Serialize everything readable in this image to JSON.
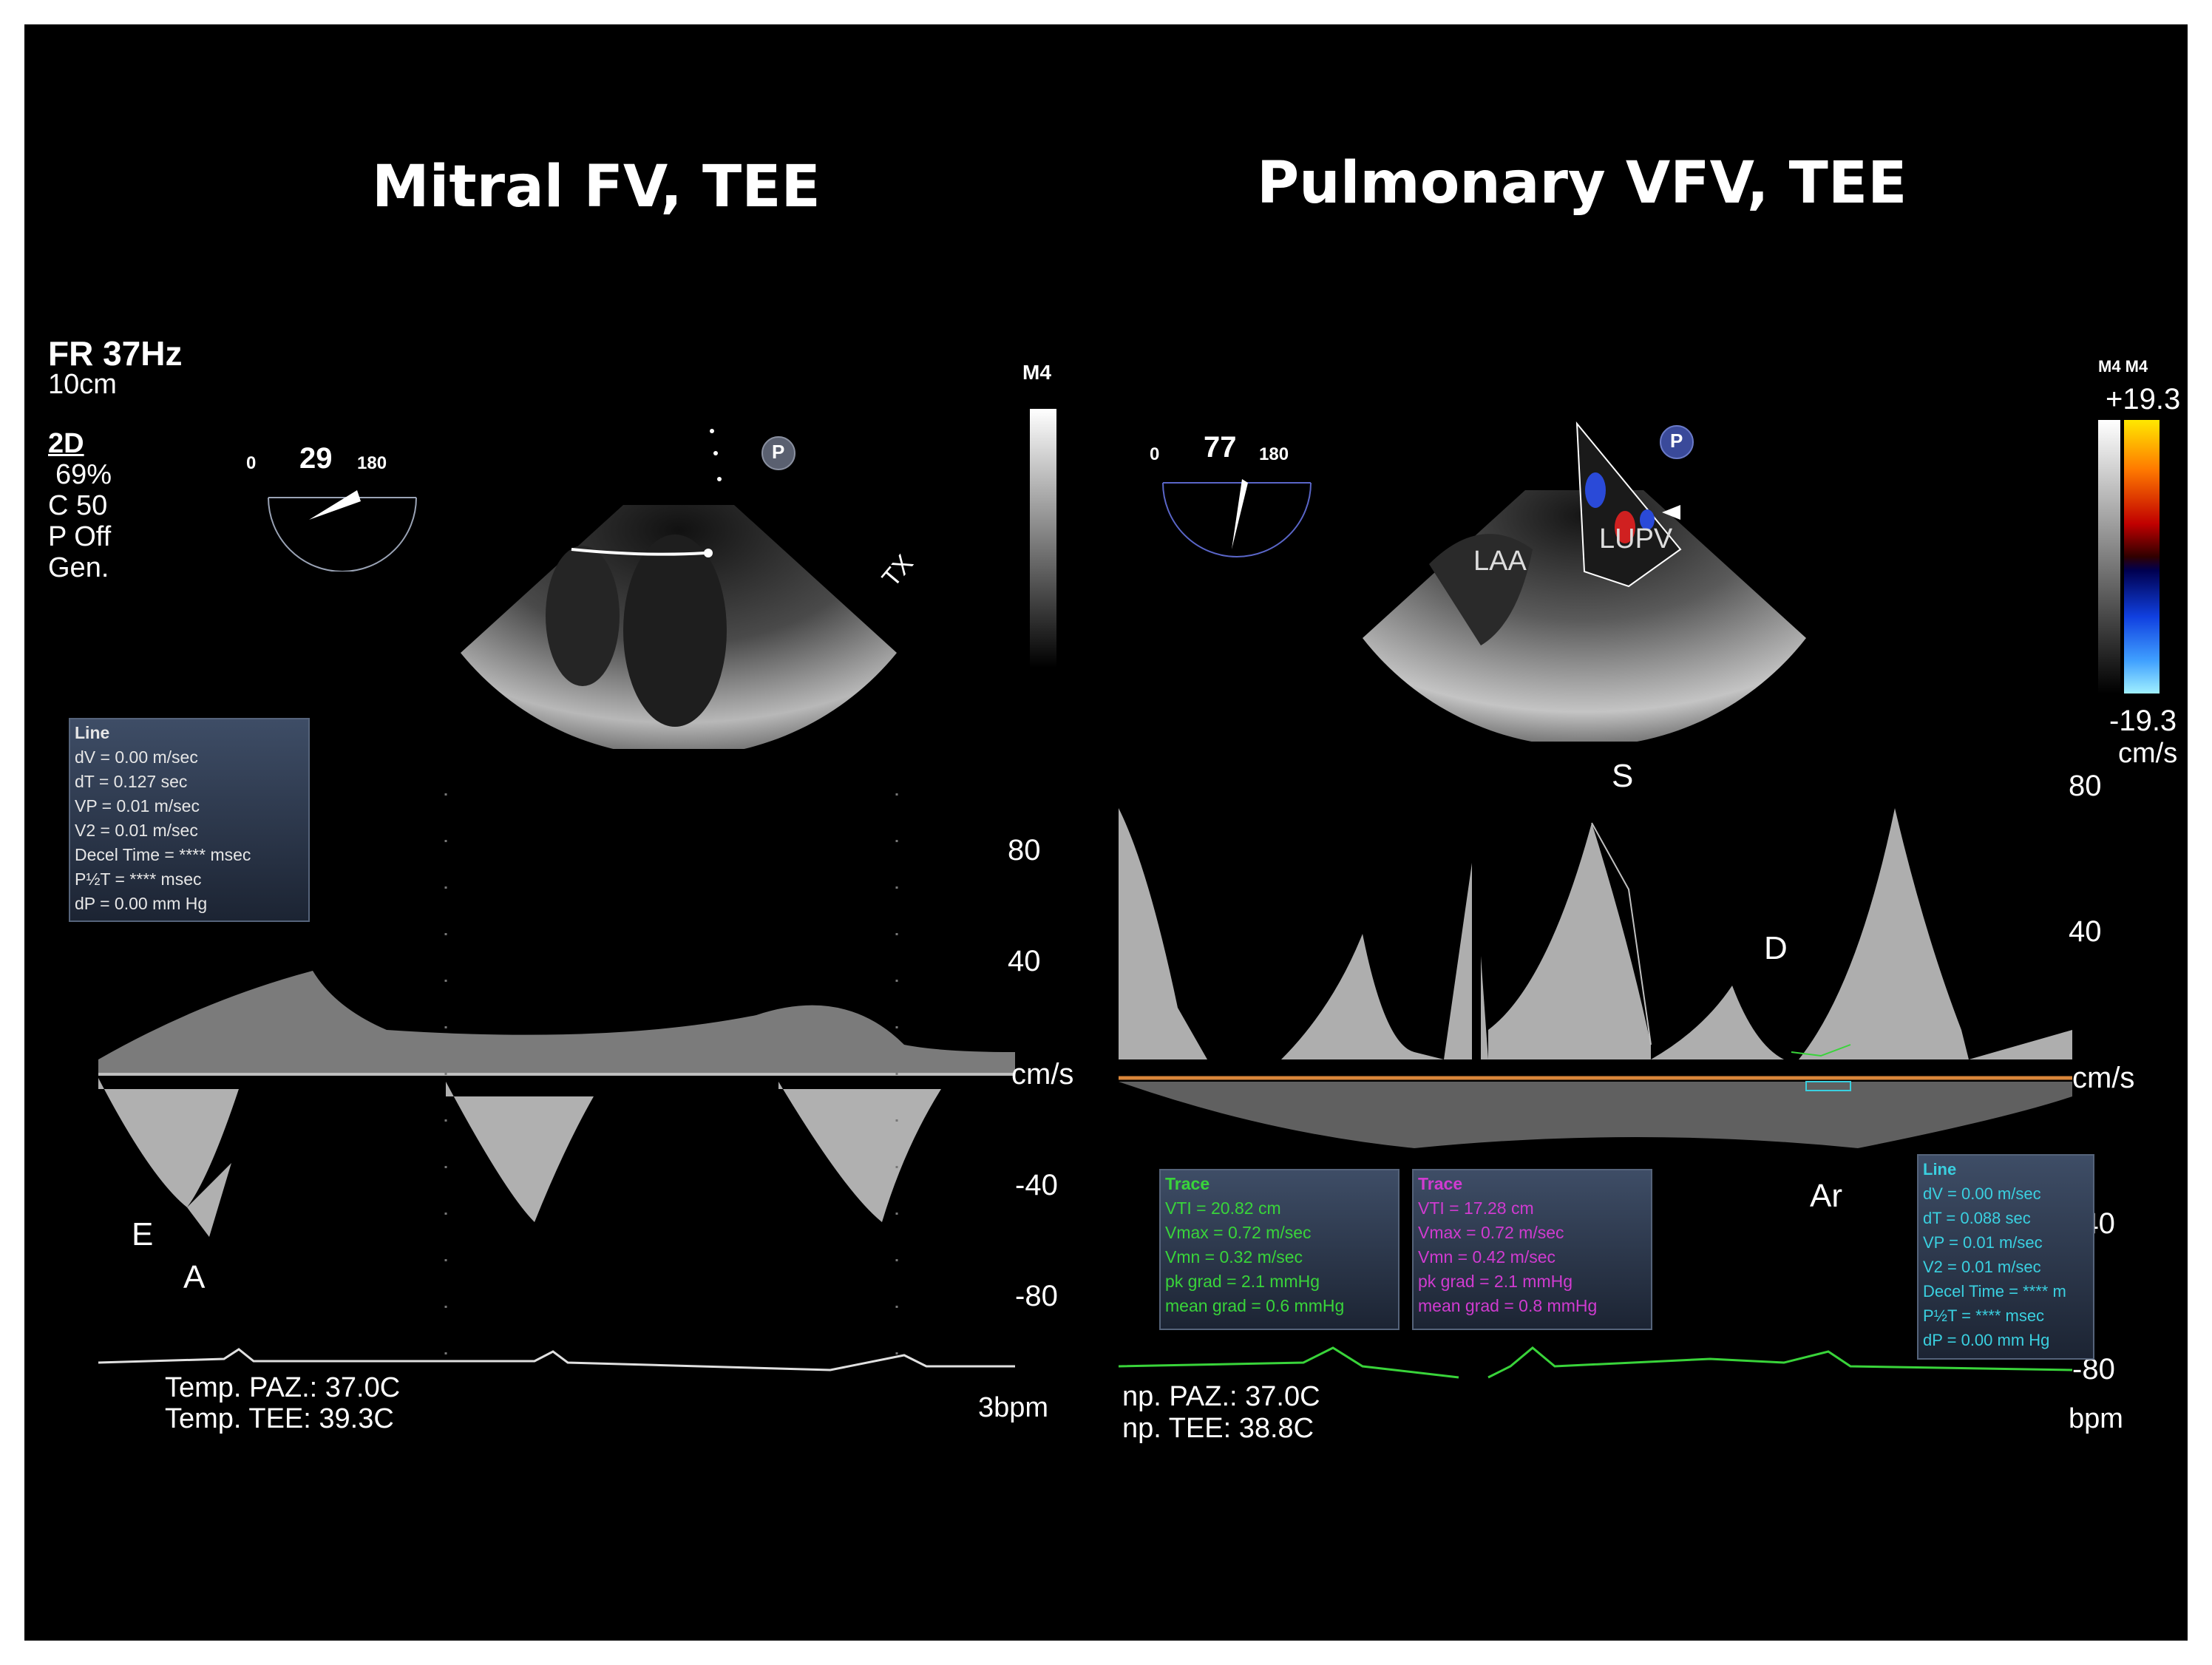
{
  "titles": {
    "left": "Mitral FV, TEE",
    "right": "Pulmonary VFV, TEE"
  },
  "left": {
    "fr": "FR 37Hz",
    "depth": "10cm",
    "mode": "2D",
    "gain": "69%",
    "compress": "C 50",
    "power": "P Off",
    "preset": "Gen.",
    "probe": "M4",
    "angle": {
      "min": "0",
      "value": "29",
      "max": "180"
    },
    "icon_p": "P",
    "probe_mark": "TX",
    "measurement": {
      "title": "Line",
      "rows": [
        "dV = 0.00 m/sec",
        "dT = 0.127 sec",
        "VP = 0.01 m/sec",
        "V2 = 0.01 m/sec",
        "Decel Time = **** msec",
        "P½T = **** msec",
        "dP = 0.00 mm Hg"
      ]
    },
    "scale": {
      "p80": "80",
      "p40": "40",
      "unit": "cm/s",
      "m40": "-40",
      "m80": "-80"
    },
    "waves": {
      "e": "E",
      "a": "A"
    },
    "temp_paz": "Temp. PAZ.: 37.0C",
    "temp_tee": "Temp. TEE: 39.3C",
    "bpm": "3bpm"
  },
  "right": {
    "probe": "M4 M4",
    "angle": {
      "min": "0",
      "value": "77",
      "max": "180"
    },
    "icon_p": "P",
    "labels": {
      "laa": "LAA",
      "lupv": "LUPV"
    },
    "color_scale": {
      "top": "+19.3",
      "bottom": "-19.3",
      "unit": "cm/s"
    },
    "scale": {
      "p80": "80",
      "p40": "40",
      "unit": "cm/s",
      "m40": "-40",
      "m80": "-80"
    },
    "waves": {
      "s": "S",
      "d": "D",
      "ar": "Ar"
    },
    "trace_green": {
      "title": "Trace",
      "rows": [
        "VTI = 20.82 cm",
        "Vmax = 0.72 m/sec",
        "Vmn = 0.32 m/sec",
        "pk grad = 2.1 mmHg",
        "mean grad = 0.6 mmHg"
      ]
    },
    "trace_magenta": {
      "title": "Trace",
      "rows": [
        "VTI = 17.28 cm",
        "Vmax = 0.72 m/sec",
        "Vmn = 0.42 m/sec",
        "pk grad = 2.1 mmHg",
        "mean grad = 0.8 mmHg"
      ]
    },
    "line_box": {
      "title": "Line",
      "rows": [
        "dV = 0.00 m/sec",
        "dT = 0.088 sec",
        "VP = 0.01 m/sec",
        "V2 = 0.01 m/sec",
        "Decel Time = **** m",
        "P½T = **** msec",
        "dP = 0.00 mm Hg"
      ]
    },
    "temp_paz": "np. PAZ.: 37.0C",
    "temp_tee": "np. TEE: 38.8C",
    "bpm": "bpm"
  },
  "colors": {
    "green": "#39d43a",
    "magenta": "#d03bd0",
    "cyan": "#3ad0e0",
    "baseline_right": "#d9863a"
  }
}
